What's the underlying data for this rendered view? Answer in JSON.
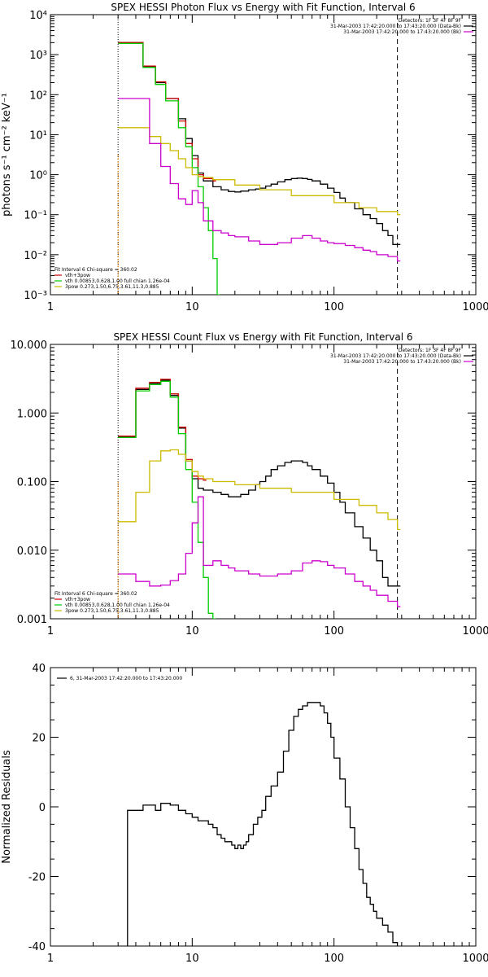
{
  "colors": {
    "data": "#000000",
    "total": "#cc0000",
    "thermal": "#00cc00",
    "powerlaw": "#ccbb00",
    "background": "#cc00cc",
    "orange_line": "#ff8800"
  },
  "chart_data": [
    {
      "type": "line",
      "title": "SPEX HESSI Photon Flux vs Energy with Fit Function, Interval 6",
      "ylabel": "photons s⁻¹ cm⁻² keV⁻¹",
      "xlabel": "",
      "xscale": "log",
      "yscale": "log",
      "xlim": [
        1,
        1000
      ],
      "ylim": [
        0.001,
        10000
      ],
      "x_ticks": [
        "1",
        "10",
        "100",
        "1000"
      ],
      "y_ticks": [
        "10⁻³",
        "10⁻²",
        "10⁻¹",
        "10⁰",
        "10¹",
        "10²",
        "10³",
        "10⁴"
      ],
      "dotted_line_x": 3,
      "dashed_line_x": 280,
      "legend_top": [
        "Detectors: 1F 3F 4F 8F 9F",
        "31-Mar-2003 17:42:20.000 to 17:43:20.000 (Data-Bk)",
        "31-Mar-2003 17:42:20.000 to 17:43:20.000 (Bk)"
      ],
      "legend_bottom": [
        "Fit Interval 6   Chi-square = 360.02",
        "vth+3pow",
        "vth 0.00853,0.628,1.00   full chian 1.26e-04",
        "3pow 0.273,1.50,6.75,3.61,11.3,0.885"
      ],
      "series": [
        {
          "name": "Data-Bk",
          "color": "#000000",
          "x": [
            3,
            3.5,
            4,
            4.5,
            5,
            5.5,
            6,
            6.5,
            7,
            8,
            9,
            10,
            11,
            12,
            14,
            16,
            18,
            20,
            22,
            25,
            28,
            30,
            33,
            36,
            40,
            45,
            50,
            55,
            60,
            65,
            70,
            80,
            90,
            100,
            110,
            120,
            140,
            160,
            180,
            200,
            220,
            240,
            260,
            280
          ],
          "y": [
            2000,
            2000,
            2000,
            500,
            500,
            200,
            200,
            80,
            80,
            25,
            8,
            3,
            1.1,
            0.7,
            0.5,
            0.42,
            0.38,
            0.37,
            0.39,
            0.42,
            0.44,
            0.46,
            0.52,
            0.58,
            0.66,
            0.75,
            0.8,
            0.82,
            0.8,
            0.76,
            0.7,
            0.58,
            0.46,
            0.36,
            0.26,
            0.2,
            0.14,
            0.1,
            0.08,
            0.06,
            0.04,
            0.03,
            0.018,
            0.018
          ]
        },
        {
          "name": "vth+3pow",
          "color": "#cc0000",
          "x": [
            3,
            3.5,
            4,
            4.5,
            5,
            5.5,
            6,
            6.5,
            7,
            8,
            9,
            10,
            11,
            12,
            14
          ],
          "y": [
            2000,
            2000,
            2000,
            520,
            520,
            210,
            210,
            80,
            80,
            22,
            6,
            2.5,
            1,
            0.8,
            0.7
          ]
        },
        {
          "name": "vth",
          "color": "#00cc00",
          "x": [
            3,
            3.5,
            4,
            4.5,
            5,
            5.5,
            6,
            6.5,
            7,
            8,
            9,
            10,
            11,
            12,
            13,
            14,
            15
          ],
          "y": [
            1900,
            1900,
            1900,
            480,
            480,
            180,
            180,
            70,
            70,
            15,
            5,
            1.5,
            0.5,
            0.15,
            0.04,
            0.008,
            0.001
          ]
        },
        {
          "name": "3pow",
          "color": "#ccbb00",
          "x": [
            3,
            4,
            5,
            6,
            7,
            8,
            9,
            10,
            11,
            12,
            14,
            20,
            30,
            50,
            100,
            150,
            200,
            280
          ],
          "y": [
            15,
            15,
            9,
            6,
            4,
            2.5,
            1.5,
            1,
            0.9,
            0.85,
            0.75,
            0.55,
            0.42,
            0.3,
            0.2,
            0.15,
            0.12,
            0.1
          ]
        },
        {
          "name": "Bk",
          "color": "#cc00cc",
          "x": [
            3,
            4,
            5,
            6,
            7,
            8,
            9,
            10,
            11,
            12,
            14,
            16,
            18,
            20,
            25,
            30,
            40,
            50,
            60,
            70,
            80,
            90,
            100,
            120,
            140,
            160,
            180,
            200,
            240,
            280
          ],
          "y": [
            80,
            80,
            6,
            1.6,
            0.6,
            0.25,
            0.18,
            0.4,
            0.2,
            0.07,
            0.04,
            0.035,
            0.03,
            0.028,
            0.022,
            0.018,
            0.02,
            0.026,
            0.03,
            0.026,
            0.022,
            0.02,
            0.019,
            0.017,
            0.015,
            0.013,
            0.012,
            0.01,
            0.009,
            0.007
          ]
        }
      ]
    },
    {
      "type": "line",
      "title": "SPEX HESSI Count Flux vs Energy with Fit Function, Interval 6",
      "ylabel": "",
      "xlabel": "",
      "xscale": "log",
      "yscale": "log",
      "xlim": [
        1,
        1000
      ],
      "ylim": [
        0.001,
        10
      ],
      "x_ticks": [
        "1",
        "10",
        "100",
        "1000"
      ],
      "y_ticks": [
        "0.001",
        "0.010",
        "0.100",
        "1.000",
        "10.000"
      ],
      "dotted_line_x": 3,
      "dashed_line_x": 280,
      "legend_top": [
        "Detectors: 1F 3F 4F 8F 9F",
        "31-Mar-2003 17:42:20.000 to 17:43:20.000 (Data-Bk)",
        "31-Mar-2003 17:42:20.000 to 17:43:20.000 (Bk)"
      ],
      "legend_bottom": [
        "Fit Interval 6   Chi-square = 360.02",
        "vth+3pow",
        "vth 0.00853,0.628,1.00   full chian 1.26e-04",
        "3pow 0.273,1.50,6.75,3.61,11.3,0.885"
      ],
      "series": [
        {
          "name": "Data-Bk",
          "color": "#000000",
          "x": [
            3,
            3.5,
            4,
            4.5,
            5,
            5.5,
            6,
            6.5,
            7,
            8,
            9,
            10,
            11,
            12,
            14,
            16,
            18,
            20,
            22,
            25,
            28,
            30,
            33,
            36,
            40,
            45,
            50,
            55,
            60,
            65,
            70,
            80,
            90,
            100,
            110,
            120,
            140,
            160,
            180,
            200,
            220,
            240,
            260,
            280
          ],
          "y": [
            0.45,
            0.45,
            2.2,
            2.2,
            2.7,
            2.7,
            3,
            3,
            1.8,
            0.6,
            0.2,
            0.11,
            0.08,
            0.075,
            0.07,
            0.065,
            0.06,
            0.06,
            0.065,
            0.075,
            0.09,
            0.1,
            0.12,
            0.15,
            0.17,
            0.19,
            0.2,
            0.2,
            0.19,
            0.17,
            0.15,
            0.12,
            0.095,
            0.07,
            0.05,
            0.035,
            0.022,
            0.015,
            0.01,
            0.007,
            0.004,
            0.003,
            0.003,
            0.003
          ]
        },
        {
          "name": "vth+3pow",
          "color": "#cc0000",
          "x": [
            3,
            3.5,
            4,
            4.5,
            5,
            5.5,
            6,
            6.5,
            7,
            8,
            9,
            10,
            11,
            12
          ],
          "y": [
            0.46,
            0.46,
            2.3,
            2.3,
            2.8,
            2.8,
            3.1,
            3.1,
            1.9,
            0.62,
            0.21,
            0.12,
            0.11,
            0.105
          ]
        },
        {
          "name": "vth",
          "color": "#00cc00",
          "x": [
            3,
            3.5,
            4,
            4.5,
            5,
            5.5,
            6,
            6.5,
            7,
            8,
            9,
            10,
            11,
            12,
            13,
            14
          ],
          "y": [
            0.44,
            0.44,
            2.1,
            2.1,
            2.6,
            2.6,
            2.9,
            2.9,
            1.7,
            0.5,
            0.15,
            0.05,
            0.013,
            0.004,
            0.0012,
            0.001
          ]
        },
        {
          "name": "3pow",
          "color": "#ccbb00",
          "x": [
            3,
            4,
            5,
            6,
            7,
            8,
            9,
            10,
            11,
            12,
            14,
            20,
            30,
            50,
            100,
            150,
            200,
            240,
            280
          ],
          "y": [
            0.026,
            0.07,
            0.2,
            0.28,
            0.29,
            0.25,
            0.2,
            0.14,
            0.12,
            0.11,
            0.1,
            0.09,
            0.08,
            0.07,
            0.055,
            0.045,
            0.035,
            0.028,
            0.02
          ]
        },
        {
          "name": "Bk",
          "color": "#cc00cc",
          "x": [
            3,
            4,
            5,
            6,
            7,
            8,
            9,
            10,
            11,
            12,
            14,
            16,
            18,
            20,
            25,
            30,
            40,
            50,
            60,
            70,
            80,
            90,
            100,
            120,
            140,
            160,
            180,
            200,
            240,
            280
          ],
          "y": [
            0.0045,
            0.0035,
            0.003,
            0.0031,
            0.0036,
            0.0045,
            0.009,
            0.025,
            0.06,
            0.006,
            0.007,
            0.006,
            0.0055,
            0.005,
            0.0045,
            0.0042,
            0.0045,
            0.005,
            0.0065,
            0.007,
            0.0068,
            0.006,
            0.0055,
            0.0045,
            0.0035,
            0.003,
            0.0026,
            0.0022,
            0.0018,
            0.0015
          ]
        }
      ]
    },
    {
      "type": "line",
      "title": "",
      "ylabel": "Normalized Residuals",
      "xlabel": "",
      "xscale": "log",
      "yscale": "linear",
      "xlim": [
        1,
        1000
      ],
      "ylim": [
        -40,
        40
      ],
      "x_ticks": [
        "1",
        "10",
        "100",
        "1000"
      ],
      "y_ticks": [
        "-40",
        "-20",
        "0",
        "20",
        "40"
      ],
      "legend_top": [
        "6, 31-Mar-2003 17:42:20.000 to 17:43:20.000"
      ],
      "series": [
        {
          "name": "",
          "color": "#000000",
          "x": [
            3,
            3.5,
            4,
            4.5,
            5,
            5.5,
            6,
            6.5,
            7,
            8,
            9,
            10,
            11,
            12,
            13,
            14,
            15,
            16,
            17,
            18,
            19,
            20,
            21,
            22,
            23,
            24,
            25,
            27,
            29,
            31,
            33,
            36,
            40,
            44,
            48,
            52,
            56,
            60,
            65,
            70,
            75,
            80,
            85,
            90,
            95,
            100,
            110,
            120,
            130,
            140,
            150,
            160,
            170,
            180,
            190,
            200,
            220,
            240,
            260,
            280
          ],
          "y": [
            -42,
            -1,
            -1,
            0.5,
            0.5,
            -1,
            1,
            1,
            0.5,
            -1,
            -2,
            -3,
            -4,
            -4,
            -5,
            -6,
            -8,
            -9,
            -10,
            -10,
            -11,
            -12,
            -11,
            -12,
            -11,
            -10,
            -8,
            -5,
            -3,
            -1,
            3,
            6,
            10,
            16,
            22,
            26,
            28,
            29,
            30,
            30,
            30,
            29,
            27,
            24,
            20,
            14,
            8,
            0,
            -6,
            -12,
            -18,
            -22,
            -26,
            -28,
            -30,
            -32,
            -34,
            -36,
            -39,
            -43
          ]
        }
      ]
    }
  ]
}
